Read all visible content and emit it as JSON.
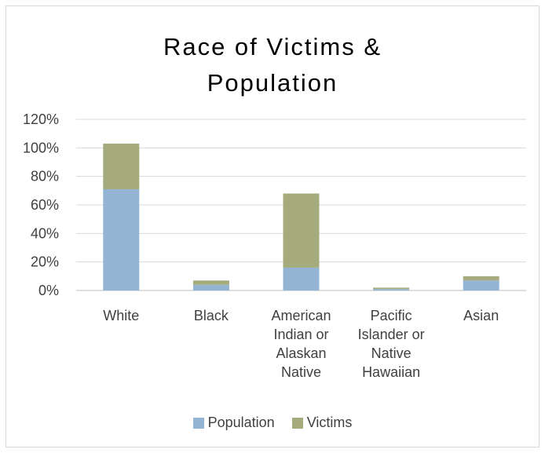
{
  "chart_data": {
    "type": "bar",
    "stacked": true,
    "title_line1": "Race of Victims &",
    "title_line2": "Population",
    "categories": [
      [
        "White"
      ],
      [
        "Black"
      ],
      [
        "American",
        "Indian or",
        "Alaskan",
        "Native"
      ],
      [
        "Pacific",
        "Islander or",
        "Native",
        "Hawaiian"
      ],
      [
        "Asian"
      ]
    ],
    "series": [
      {
        "name": "Population",
        "color": "#93b5d3",
        "values": [
          71,
          4,
          16,
          1,
          7
        ]
      },
      {
        "name": "Victims",
        "color": "#a5ab7d",
        "values": [
          32,
          3,
          52,
          1,
          3
        ]
      }
    ],
    "ylim": [
      0,
      120
    ],
    "yticks": [
      "0%",
      "20%",
      "40%",
      "60%",
      "80%",
      "100%",
      "120%"
    ],
    "grid": true,
    "legend_position": "bottom"
  }
}
